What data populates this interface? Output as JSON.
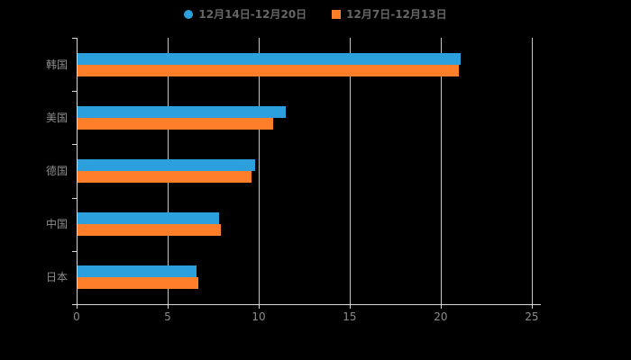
{
  "chart_data": {
    "type": "bar",
    "orientation": "horizontal",
    "title": "",
    "xlabel": "",
    "ylabel": "",
    "categories": [
      "韩国",
      "美国",
      "德国",
      "中国",
      "日本"
    ],
    "series": [
      {
        "name": "12月14日-12月20日",
        "marker": "circle",
        "color": "#2BA0DC",
        "values": [
          21.1,
          11.5,
          9.8,
          7.8,
          6.6
        ]
      },
      {
        "name": "12月7日-12月13日",
        "marker": "square",
        "color": "#FF7E29",
        "values": [
          21.0,
          10.8,
          9.6,
          7.9,
          6.7
        ]
      }
    ],
    "xlim": [
      0,
      25.5
    ],
    "xticks": [
      0,
      5,
      10,
      15,
      20,
      25
    ],
    "grid": true,
    "legend_position": "top-center"
  },
  "colors": {
    "background": "#000000",
    "axis_line": "#d9d9d9",
    "grid_line": "#c6c6c6",
    "tick_text": "#8c8c8c",
    "category_text": "#8c8c8c",
    "legend_text": "#666666"
  }
}
